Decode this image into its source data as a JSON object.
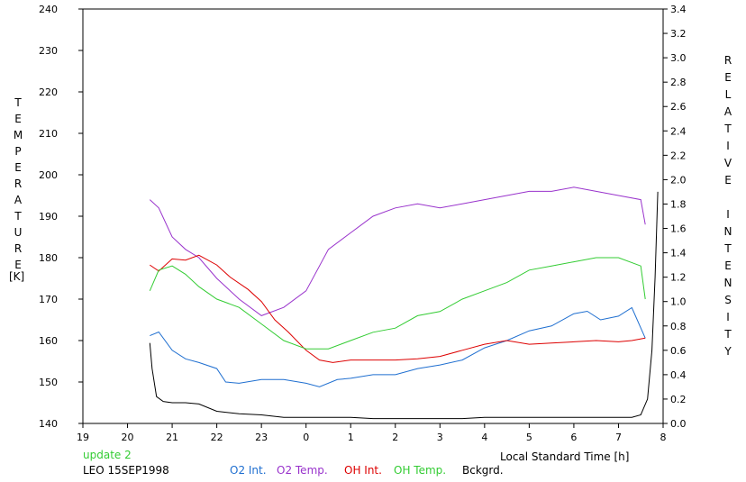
{
  "chart_data": {
    "type": "line",
    "xlabel": "Local Standard Time [h]",
    "left_axis_label": "TEMPERATURE",
    "left_axis_unit": "[K]",
    "right_axis_label": "RELATIVE INTENSITY",
    "x_ticks": [
      "19",
      "20",
      "21",
      "22",
      "23",
      "0",
      "1",
      "2",
      "3",
      "4",
      "5",
      "6",
      "7",
      "8"
    ],
    "xlim_hours": [
      19,
      32
    ],
    "y_left_ticks": [
      "140",
      "150",
      "160",
      "170",
      "180",
      "190",
      "200",
      "210",
      "220",
      "230",
      "240"
    ],
    "ylim_left": [
      140,
      240
    ],
    "y_right_ticks": [
      "0.0",
      "0.2",
      "0.4",
      "0.6",
      "0.8",
      "1.0",
      "1.2",
      "1.4",
      "1.6",
      "1.8",
      "2.0",
      "2.2",
      "2.4",
      "2.6",
      "2.8",
      "3.0",
      "3.2",
      "3.4"
    ],
    "ylim_right": [
      0,
      3.4
    ],
    "grid": false,
    "legend_position": "bottom",
    "status_text": "update 2",
    "station_date": "LEO 15SEP1998",
    "series": [
      {
        "name": "O2 Int.",
        "axis": "right",
        "color": "#1f6fd0",
        "x": [
          20.5,
          20.7,
          21.0,
          21.3,
          21.6,
          22.0,
          22.2,
          22.5,
          23.0,
          23.5,
          24.0,
          24.3,
          24.7,
          25.0,
          25.5,
          26.0,
          26.5,
          27.0,
          27.5,
          28.0,
          28.5,
          29.0,
          29.5,
          30.0,
          30.3,
          30.6,
          31.0,
          31.3,
          31.6
        ],
        "y": [
          0.72,
          0.75,
          0.6,
          0.53,
          0.5,
          0.45,
          0.34,
          0.33,
          0.36,
          0.36,
          0.33,
          0.3,
          0.36,
          0.37,
          0.4,
          0.4,
          0.45,
          0.48,
          0.52,
          0.62,
          0.68,
          0.76,
          0.8,
          0.9,
          0.92,
          0.85,
          0.88,
          0.95,
          0.7
        ]
      },
      {
        "name": "O2 Temp.",
        "axis": "left",
        "color": "#9933cc",
        "x": [
          20.5,
          20.7,
          21.0,
          21.3,
          21.6,
          22.0,
          22.5,
          23.0,
          23.5,
          24.0,
          24.5,
          25.0,
          25.5,
          26.0,
          26.5,
          27.0,
          27.5,
          28.0,
          28.5,
          29.0,
          29.5,
          30.0,
          30.5,
          31.0,
          31.5,
          31.6
        ],
        "y": [
          194,
          192,
          185,
          182,
          180,
          175,
          170,
          166,
          168,
          172,
          182,
          186,
          190,
          192,
          193,
          192,
          193,
          194,
          195,
          196,
          196,
          197,
          196,
          195,
          194,
          188
        ]
      },
      {
        "name": "OH Int.",
        "axis": "right",
        "color": "#dd0000",
        "x": [
          20.5,
          20.7,
          21.0,
          21.3,
          21.6,
          22.0,
          22.3,
          22.7,
          23.0,
          23.3,
          23.6,
          24.0,
          24.3,
          24.6,
          25.0,
          25.5,
          26.0,
          26.5,
          27.0,
          27.5,
          28.0,
          28.5,
          29.0,
          29.5,
          30.0,
          30.5,
          31.0,
          31.3,
          31.6
        ],
        "y": [
          1.3,
          1.25,
          1.35,
          1.34,
          1.38,
          1.3,
          1.2,
          1.1,
          1.0,
          0.85,
          0.75,
          0.6,
          0.52,
          0.5,
          0.52,
          0.52,
          0.52,
          0.53,
          0.55,
          0.6,
          0.65,
          0.68,
          0.65,
          0.66,
          0.67,
          0.68,
          0.67,
          0.68,
          0.7
        ]
      },
      {
        "name": "OH Temp.",
        "axis": "left",
        "color": "#33cc33",
        "x": [
          20.5,
          20.7,
          21.0,
          21.3,
          21.6,
          22.0,
          22.5,
          23.0,
          23.5,
          24.0,
          24.5,
          25.0,
          25.5,
          26.0,
          26.5,
          27.0,
          27.5,
          28.0,
          28.5,
          29.0,
          29.5,
          30.0,
          30.5,
          31.0,
          31.5,
          31.6
        ],
        "y": [
          172,
          177,
          178,
          176,
          173,
          170,
          168,
          164,
          160,
          158,
          158,
          160,
          162,
          163,
          166,
          167,
          170,
          172,
          174,
          177,
          178,
          179,
          180,
          180,
          178,
          170
        ]
      },
      {
        "name": "Bckgrd.",
        "axis": "right",
        "color": "#000000",
        "x": [
          20.5,
          20.55,
          20.65,
          20.8,
          21.0,
          21.3,
          21.6,
          22.0,
          22.5,
          23.0,
          23.5,
          24.0,
          24.5,
          25.0,
          25.5,
          26.0,
          26.5,
          27.0,
          27.5,
          28.0,
          28.5,
          29.0,
          29.5,
          30.0,
          30.5,
          31.0,
          31.3,
          31.5,
          31.65,
          31.75,
          31.82,
          31.88
        ],
        "y": [
          0.66,
          0.45,
          0.22,
          0.18,
          0.17,
          0.17,
          0.16,
          0.1,
          0.08,
          0.07,
          0.05,
          0.05,
          0.05,
          0.05,
          0.04,
          0.04,
          0.04,
          0.04,
          0.04,
          0.05,
          0.05,
          0.05,
          0.05,
          0.05,
          0.05,
          0.05,
          0.05,
          0.07,
          0.2,
          0.6,
          1.2,
          1.9
        ]
      }
    ]
  }
}
